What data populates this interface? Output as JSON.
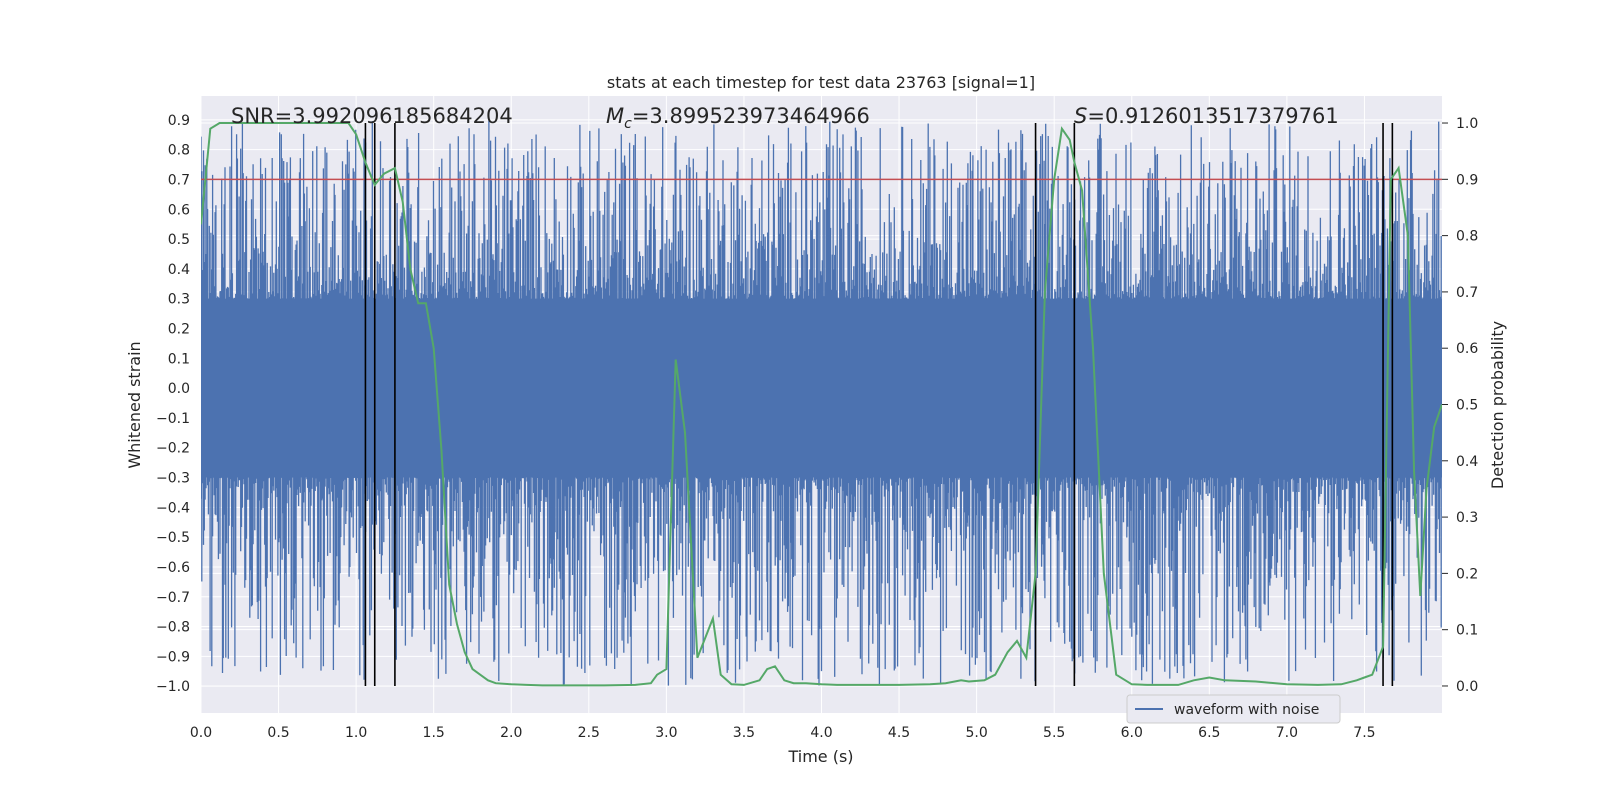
{
  "chart_data": {
    "type": "line",
    "title": "stats at each timestep for test data 23763 [signal=1]",
    "xlabel": "Time (s)",
    "ylabel": "Whitened strain",
    "y2label": "Detection probability",
    "xlim": [
      0.0,
      8.0
    ],
    "ylim": [
      -1.09,
      0.98
    ],
    "y2lim": [
      -0.048,
      1.048
    ],
    "xticks": [
      0.0,
      0.5,
      1.0,
      1.5,
      2.0,
      2.5,
      3.0,
      3.5,
      4.0,
      4.5,
      5.0,
      5.5,
      6.0,
      6.5,
      7.0,
      7.5
    ],
    "xtick_labels": [
      "0.0",
      "0.5",
      "1.0",
      "1.5",
      "2.0",
      "2.5",
      "3.0",
      "3.5",
      "4.0",
      "4.5",
      "5.0",
      "5.5",
      "6.0",
      "6.5",
      "7.0",
      "7.5"
    ],
    "yticks": [
      -1.0,
      -0.9,
      -0.8,
      -0.7,
      -0.6,
      -0.5,
      -0.4,
      -0.3,
      -0.2,
      -0.1,
      0.0,
      0.1,
      0.2,
      0.3,
      0.4,
      0.5,
      0.6,
      0.7,
      0.8,
      0.9
    ],
    "ytick_labels": [
      "−1.0",
      "−0.9",
      "−0.8",
      "−0.7",
      "−0.6",
      "−0.5",
      "−0.4",
      "−0.3",
      "−0.2",
      "−0.1",
      "0.0",
      "0.1",
      "0.2",
      "0.3",
      "0.4",
      "0.5",
      "0.6",
      "0.7",
      "0.8",
      "0.9"
    ],
    "y2ticks": [
      0.0,
      0.1,
      0.2,
      0.3,
      0.4,
      0.5,
      0.6,
      0.7,
      0.8,
      0.9,
      1.0
    ],
    "y2tick_labels": [
      "0.0",
      "0.1",
      "0.2",
      "0.3",
      "0.4",
      "0.5",
      "0.6",
      "0.7",
      "0.8",
      "0.9",
      "1.0"
    ],
    "threshold": {
      "axis": "y2",
      "value": 0.9,
      "color": "#c44e52"
    },
    "vlines": [
      1.06,
      1.12,
      1.25,
      5.38,
      5.63,
      7.62,
      7.68
    ],
    "annotations": {
      "snr": "SNR=3.992096185684204",
      "mc_symbol": "M",
      "mc_subscript": "c",
      "mc_value": "=3.899523973464966",
      "s_symbol": "S",
      "s_value": "=0.9126013517379761"
    },
    "series": [
      {
        "name": "waveform with noise",
        "axis": "y",
        "color": "#4c72b0",
        "style": "dense-noise",
        "core_band": [
          -0.3,
          0.3
        ],
        "range": [
          -1.0,
          0.9
        ]
      },
      {
        "name": "detection probability",
        "axis": "y2",
        "color": "#55a868",
        "x": [
          0.0,
          0.06,
          0.12,
          0.2,
          0.3,
          0.4,
          0.5,
          0.6,
          0.7,
          0.8,
          0.9,
          0.95,
          1.0,
          1.06,
          1.12,
          1.18,
          1.25,
          1.3,
          1.35,
          1.4,
          1.45,
          1.5,
          1.55,
          1.6,
          1.65,
          1.7,
          1.75,
          1.8,
          1.85,
          1.9,
          2.0,
          2.1,
          2.2,
          2.4,
          2.6,
          2.8,
          2.9,
          2.94,
          3.0,
          3.06,
          3.12,
          3.2,
          3.3,
          3.35,
          3.42,
          3.5,
          3.6,
          3.65,
          3.7,
          3.76,
          3.82,
          3.9,
          4.0,
          4.1,
          4.3,
          4.5,
          4.7,
          4.8,
          4.9,
          4.95,
          5.05,
          5.12,
          5.2,
          5.26,
          5.32,
          5.38,
          5.44,
          5.5,
          5.55,
          5.6,
          5.63,
          5.68,
          5.75,
          5.82,
          5.9,
          6.0,
          6.1,
          6.3,
          6.4,
          6.5,
          6.6,
          6.8,
          7.0,
          7.2,
          7.35,
          7.45,
          7.5,
          7.55,
          7.62,
          7.67,
          7.72,
          7.78,
          7.82,
          7.86,
          7.9,
          7.95,
          8.0
        ],
        "y": [
          0.82,
          0.99,
          1.0,
          1.0,
          1.0,
          1.0,
          1.0,
          1.0,
          1.0,
          1.0,
          1.0,
          1.0,
          0.98,
          0.93,
          0.89,
          0.91,
          0.92,
          0.86,
          0.74,
          0.68,
          0.68,
          0.6,
          0.42,
          0.18,
          0.11,
          0.06,
          0.03,
          0.02,
          0.01,
          0.005,
          0.003,
          0.002,
          0.001,
          0.001,
          0.001,
          0.002,
          0.005,
          0.02,
          0.03,
          0.58,
          0.45,
          0.05,
          0.12,
          0.02,
          0.003,
          0.002,
          0.01,
          0.03,
          0.035,
          0.01,
          0.005,
          0.005,
          0.003,
          0.002,
          0.002,
          0.002,
          0.003,
          0.005,
          0.01,
          0.008,
          0.01,
          0.02,
          0.06,
          0.08,
          0.05,
          0.2,
          0.7,
          0.9,
          0.99,
          0.97,
          0.93,
          0.88,
          0.6,
          0.2,
          0.02,
          0.003,
          0.002,
          0.002,
          0.01,
          0.015,
          0.01,
          0.008,
          0.003,
          0.002,
          0.003,
          0.01,
          0.015,
          0.02,
          0.07,
          0.9,
          0.92,
          0.8,
          0.38,
          0.16,
          0.35,
          0.46,
          0.5
        ]
      }
    ],
    "legend": {
      "label": "waveform with noise",
      "position": "lower-right"
    }
  }
}
